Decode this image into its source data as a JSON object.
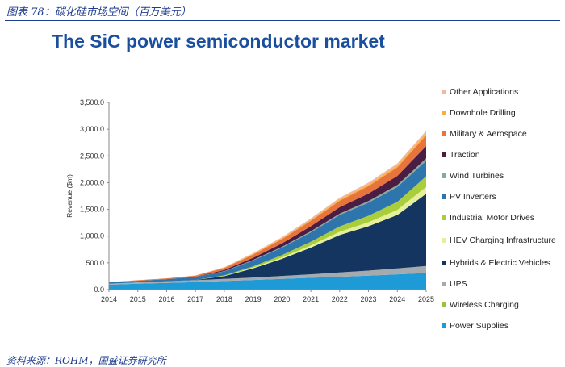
{
  "header": {
    "caption": "图表 78：碳化硅市场空间（百万美元）",
    "title": "The SiC power semiconductor market"
  },
  "footer": {
    "source": "资料来源：ROHM，国盛证券研究所"
  },
  "chart_data": {
    "type": "area",
    "stacked": true,
    "title": "",
    "xlabel": "",
    "ylabel": "Revenue ($m)",
    "ylim": [
      0,
      3500
    ],
    "grid": false,
    "legend_position": "right",
    "x": [
      "2014",
      "2015",
      "2016",
      "2017",
      "2018",
      "2019",
      "2020",
      "2021",
      "2022",
      "2023",
      "2024",
      "2025"
    ],
    "y_ticks": [
      "0.0",
      "500.0",
      "1,000.0",
      "1,500.0",
      "2,000.0",
      "2,500.0",
      "3,000.0",
      "3,500.0"
    ],
    "series": [
      {
        "name": "Power Supplies",
        "color": "#1e9ad6",
        "values": [
          90,
          110,
          125,
          140,
          160,
          180,
          200,
          220,
          240,
          260,
          285,
          310
        ]
      },
      {
        "name": "Wireless Charging",
        "color": "#9ac33c",
        "values": [
          0,
          0,
          0,
          0,
          0,
          0,
          0,
          0,
          0,
          0,
          0,
          0
        ]
      },
      {
        "name": "UPS",
        "color": "#a5aaaf",
        "values": [
          20,
          25,
          30,
          35,
          40,
          45,
          55,
          65,
          80,
          95,
          110,
          130
        ]
      },
      {
        "name": "Hybrids & Electric Vehicles",
        "color": "#13355f",
        "values": [
          0,
          0,
          0,
          5,
          50,
          170,
          320,
          500,
          700,
          830,
          1000,
          1350
        ]
      },
      {
        "name": "HEV Charging Infrastructure",
        "color": "#e6ef9a",
        "values": [
          0,
          0,
          0,
          0,
          5,
          15,
          25,
          40,
          60,
          75,
          95,
          130
        ]
      },
      {
        "name": "Industrial Motor Drives",
        "color": "#aacd3c",
        "values": [
          0,
          0,
          0,
          0,
          10,
          25,
          45,
          70,
          100,
          120,
          150,
          200
        ]
      },
      {
        "name": "PV Inverters",
        "color": "#2e75ae",
        "values": [
          25,
          30,
          40,
          55,
          75,
          110,
          140,
          175,
          215,
          245,
          280,
          290
        ]
      },
      {
        "name": "Wind Turbines",
        "color": "#8aa89a",
        "values": [
          0,
          0,
          0,
          0,
          5,
          10,
          15,
          20,
          25,
          30,
          35,
          45
        ]
      },
      {
        "name": "Traction",
        "color": "#4a1d45",
        "values": [
          0,
          0,
          0,
          5,
          20,
          40,
          65,
          95,
          120,
          140,
          170,
          230
        ]
      },
      {
        "name": "Military & Aerospace",
        "color": "#e8743c",
        "values": [
          5,
          10,
          15,
          20,
          40,
          60,
          80,
          100,
          120,
          140,
          160,
          200
        ]
      },
      {
        "name": "Downhole Drilling",
        "color": "#f7b13b",
        "values": [
          0,
          0,
          0,
          0,
          5,
          10,
          15,
          20,
          25,
          30,
          35,
          40
        ]
      },
      {
        "name": "Other Applications",
        "color": "#f2b8a0",
        "values": [
          0,
          0,
          0,
          5,
          10,
          15,
          20,
          25,
          30,
          35,
          40,
          45
        ]
      }
    ]
  }
}
